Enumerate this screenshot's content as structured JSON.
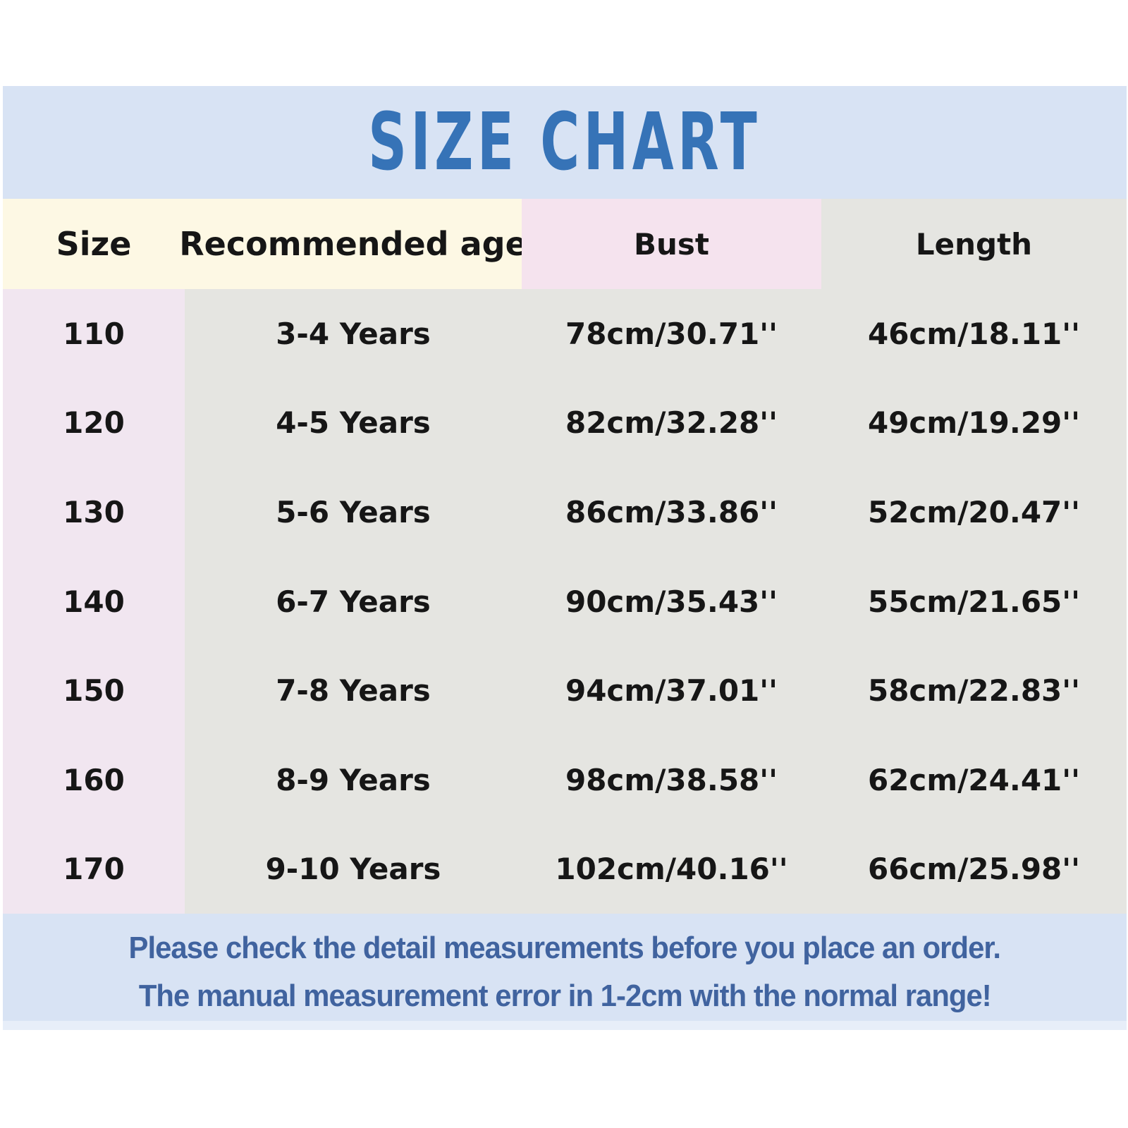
{
  "title": "SIZE CHART",
  "table": {
    "headers": {
      "size": "Size",
      "age": "Recommended age",
      "bust": "Bust",
      "length": "Length"
    },
    "rows": [
      {
        "size": "110",
        "age": "3-4 Years",
        "bust": "78cm/30.71''",
        "length": "46cm/18.11''"
      },
      {
        "size": "120",
        "age": "4-5 Years",
        "bust": "82cm/32.28''",
        "length": "49cm/19.29''"
      },
      {
        "size": "130",
        "age": "5-6 Years",
        "bust": "86cm/33.86''",
        "length": "52cm/20.47''"
      },
      {
        "size": "140",
        "age": "6-7 Years",
        "bust": "90cm/35.43''",
        "length": "55cm/21.65''"
      },
      {
        "size": "150",
        "age": "7-8 Years",
        "bust": "94cm/37.01''",
        "length": "58cm/22.83''"
      },
      {
        "size": "160",
        "age": "8-9 Years",
        "bust": "98cm/38.58''",
        "length": "62cm/24.41''"
      },
      {
        "size": "170",
        "age": "9-10 Years",
        "bust": "102cm/40.16''",
        "length": "66cm/25.98''"
      }
    ]
  },
  "footer": {
    "line1": "Please check the detail measurements before you place an order.",
    "line2": "The manual measurement error in 1-2cm with the normal range!"
  },
  "colors": {
    "banner_blue": "#d8e3f4",
    "title_blue": "#3673b7",
    "header_cream": "#fdf8e4",
    "header_pink": "#f5e3ee",
    "column_lavender": "#f1e6f0",
    "table_gray": "#e5e5e1",
    "footer_text_blue": "#40639f",
    "body_text": "#161616"
  }
}
